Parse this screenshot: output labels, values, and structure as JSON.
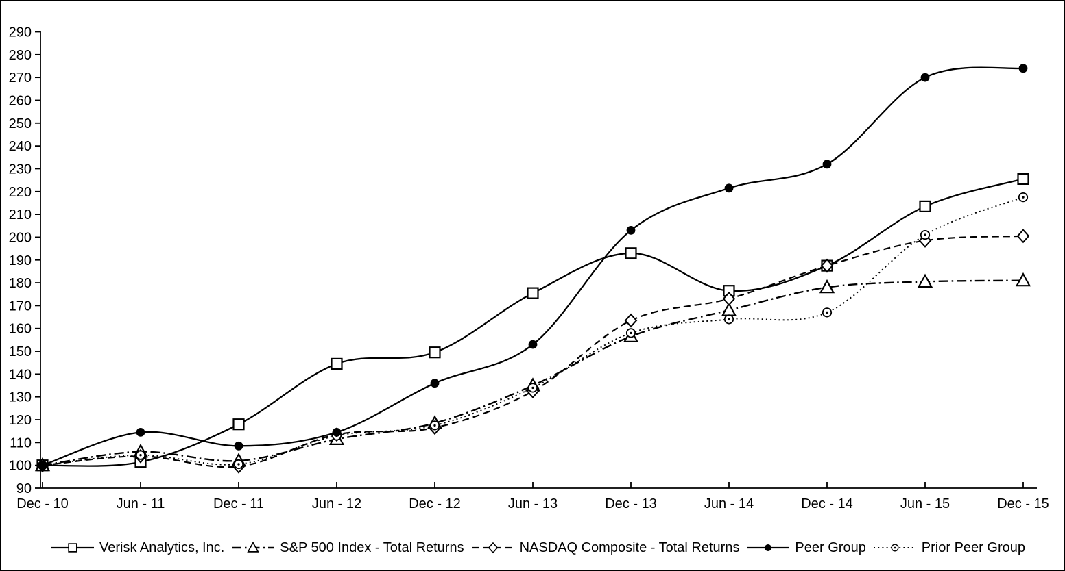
{
  "chart_data": {
    "type": "line",
    "title": "",
    "subtitle": "",
    "xlabel": "",
    "ylabel": "",
    "grid": false,
    "smoothed_lines": true,
    "legend_position": "bottom",
    "background_color": "#ffffff",
    "foreground_color": "#000000",
    "y_axis": {
      "min": 90,
      "max": 290,
      "step": 10,
      "tick_labels": [
        "90",
        "100",
        "110",
        "120",
        "130",
        "140",
        "150",
        "160",
        "170",
        "180",
        "190",
        "200",
        "210",
        "220",
        "230",
        "240",
        "250",
        "260",
        "270",
        "280",
        "290"
      ]
    },
    "x_labels": [
      "Dec - 10",
      "Jun - 11",
      "Dec - 11",
      "Jun - 12",
      "Dec - 12",
      "Jun - 13",
      "Dec - 13",
      "Jun - 14",
      "Dec - 14",
      "Jun - 15",
      "Dec - 15"
    ],
    "series": [
      {
        "id": "verisk-analytics",
        "name": "Verisk Analytics, Inc.",
        "marker": "square",
        "line_style": "solid",
        "color": "#000000",
        "values": [
          100,
          101.5,
          118,
          144.5,
          149.5,
          175.5,
          193,
          176.5,
          187.5,
          213.5,
          225.5
        ]
      },
      {
        "id": "sp500-total-returns",
        "name": "S&P 500 Index - Total Returns",
        "marker": "triangle",
        "line_style": "dashdot",
        "color": "#000000",
        "values": [
          100,
          106,
          102,
          111.5,
          118.5,
          135,
          156.5,
          168,
          178,
          180.5,
          181
        ]
      },
      {
        "id": "nasdaq-total-returns",
        "name": "NASDAQ Composite - Total Returns",
        "marker": "diamond",
        "line_style": "dashed",
        "color": "#000000",
        "values": [
          100,
          104,
          99.5,
          113.5,
          116.5,
          132.5,
          163.5,
          173,
          187.5,
          198.5,
          200.5
        ]
      },
      {
        "id": "peer-group",
        "name": "Peer Group",
        "marker": "circle-filled",
        "line_style": "solid",
        "color": "#000000",
        "values": [
          100,
          114.5,
          108.5,
          114.5,
          136,
          153,
          203,
          221.5,
          232,
          270,
          274
        ]
      },
      {
        "id": "prior-peer-group",
        "name": "Prior Peer Group",
        "marker": "circle-dot",
        "line_style": "dotted",
        "color": "#000000",
        "values": [
          100,
          104.5,
          100.5,
          113,
          117.5,
          134,
          158,
          164,
          167,
          201,
          217.5
        ]
      }
    ]
  }
}
